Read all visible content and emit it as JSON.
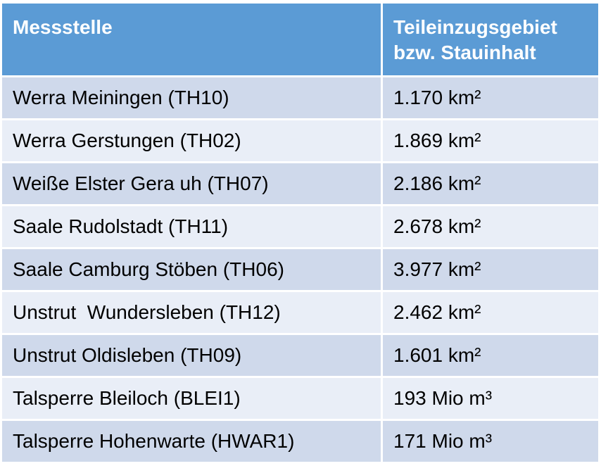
{
  "header": {
    "columns": [
      "Messstelle",
      [
        "Teileinzugsgebiet",
        "bzw. Stauinhalt"
      ]
    ]
  },
  "table": {
    "rows": [
      [
        "Werra Meiningen (TH10)",
        "1.170 km²"
      ],
      [
        "Werra Gerstungen (TH02)",
        "1.869 km²"
      ],
      [
        "Weiße Elster Gera uh (TH07)",
        "2.186 km²"
      ],
      [
        "Saale Rudolstadt (TH11)",
        "2.678 km²"
      ],
      [
        "Saale Camburg Stöben (TH06)",
        "3.977 km²"
      ],
      [
        "Unstrut  Wundersleben (TH12)",
        "2.462 km²"
      ],
      [
        "Unstrut Oldisleben (TH09)",
        "1.601 km²"
      ],
      [
        "Talsperre Bleiloch (BLEI1)",
        "193 Mio m³"
      ],
      [
        "Talsperre Hohenwarte (HWAR1)",
        "171 Mio m³"
      ]
    ]
  }
}
